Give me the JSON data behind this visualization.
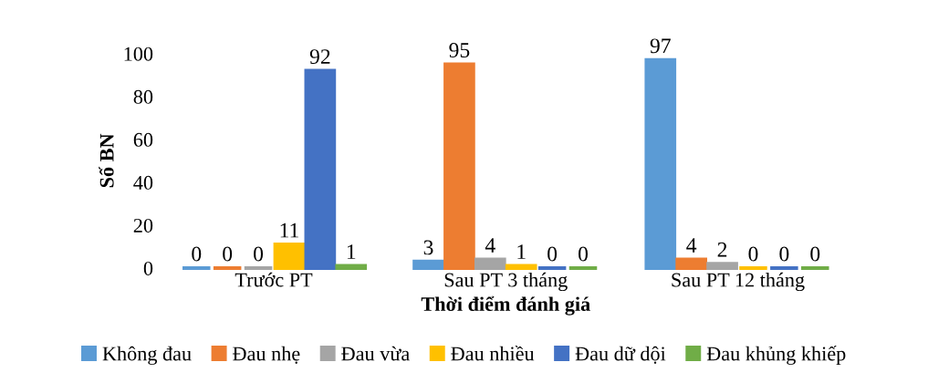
{
  "chart_data": {
    "type": "bar",
    "xlabel": "Thời điểm đánh giá",
    "ylabel": "Số BN",
    "categories": [
      "Trước PT",
      "Sau PT 3 tháng",
      "Sau PT 12 tháng"
    ],
    "series": [
      {
        "name": "Không đau",
        "color": "#5b9bd5",
        "values": [
          0,
          3,
          97
        ]
      },
      {
        "name": "Đau nhẹ",
        "color": "#ed7d31",
        "values": [
          0,
          95,
          4
        ]
      },
      {
        "name": "Đau vừa",
        "color": "#a5a5a5",
        "values": [
          0,
          4,
          2
        ]
      },
      {
        "name": "Đau nhiều",
        "color": "#ffc000",
        "values": [
          11,
          1,
          0
        ]
      },
      {
        "name": "Đau dữ dội",
        "color": "#4472c4",
        "values": [
          92,
          0,
          0
        ]
      },
      {
        "name": "Đau khủng khiếp",
        "color": "#70ad47",
        "values": [
          1,
          0,
          0
        ]
      }
    ],
    "ylim": [
      0,
      100
    ],
    "yticks": [
      0,
      20,
      40,
      60,
      80,
      100
    ],
    "grid": false,
    "legend": "bottom",
    "data_labels": true
  }
}
